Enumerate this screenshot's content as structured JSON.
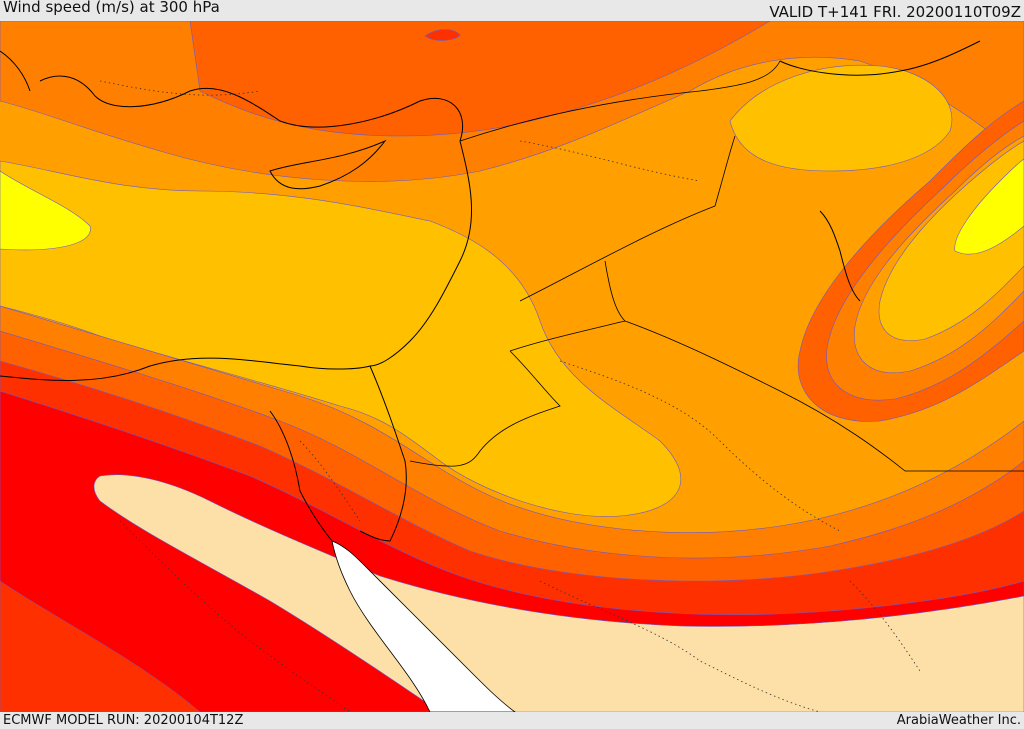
{
  "header": {
    "title": "Wind speed (m/s) at 300 hPa",
    "valid_time": "VALID T+141 FRI. 20200110T09Z"
  },
  "footer": {
    "model_run": "ECMWF MODEL RUN: 20200104T12Z",
    "credit": "ArabiaWeather Inc."
  },
  "colors": {
    "band_light_peach": "#fde0a8",
    "band_yellow": "#ffff00",
    "band_amber": "#ffc000",
    "band_orange_light": "#ff9f00",
    "band_orange": "#ff8000",
    "band_orange_dark": "#ff6000",
    "band_red_orange": "#ff3000",
    "band_red": "#ff0000",
    "band_white": "#ffffff"
  }
}
